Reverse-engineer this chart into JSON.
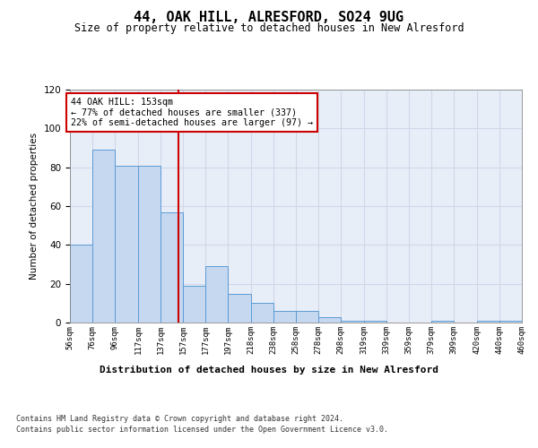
{
  "title": "44, OAK HILL, ALRESFORD, SO24 9UG",
  "subtitle": "Size of property relative to detached houses in New Alresford",
  "xlabel": "Distribution of detached houses by size in New Alresford",
  "ylabel": "Number of detached properties",
  "footer_line1": "Contains HM Land Registry data © Crown copyright and database right 2024.",
  "footer_line2": "Contains public sector information licensed under the Open Government Licence v3.0.",
  "annotation_line1": "44 OAK HILL: 153sqm",
  "annotation_line2": "← 77% of detached houses are smaller (337)",
  "annotation_line3": "22% of semi-detached houses are larger (97) →",
  "property_size_sqm": 153,
  "bar_left_edges": [
    56,
    76,
    96,
    117,
    137,
    157,
    177,
    197,
    218,
    238,
    258,
    278,
    298,
    319,
    339,
    359,
    379,
    399,
    420,
    440
  ],
  "bar_widths": [
    20,
    20,
    21,
    20,
    20,
    20,
    20,
    21,
    20,
    20,
    20,
    20,
    21,
    20,
    20,
    20,
    20,
    21,
    20,
    20
  ],
  "bar_heights": [
    40,
    89,
    81,
    81,
    57,
    19,
    29,
    15,
    10,
    6,
    6,
    3,
    1,
    1,
    0,
    0,
    1,
    0,
    1,
    1
  ],
  "bar_color": "#c5d8f0",
  "bar_edge_color": "#5b9bd5",
  "red_line_color": "#cc0000",
  "annotation_box_color": "#cc0000",
  "grid_color": "#d0d8e8",
  "background_color": "#e8eef8",
  "ylim": [
    0,
    120
  ],
  "yticks": [
    0,
    20,
    40,
    60,
    80,
    100,
    120
  ],
  "tick_labels": [
    "56sqm",
    "76sqm",
    "96sqm",
    "117sqm",
    "137sqm",
    "157sqm",
    "177sqm",
    "197sqm",
    "218sqm",
    "238sqm",
    "258sqm",
    "278sqm",
    "298sqm",
    "319sqm",
    "339sqm",
    "359sqm",
    "379sqm",
    "399sqm",
    "420sqm",
    "440sqm",
    "460sqm"
  ]
}
